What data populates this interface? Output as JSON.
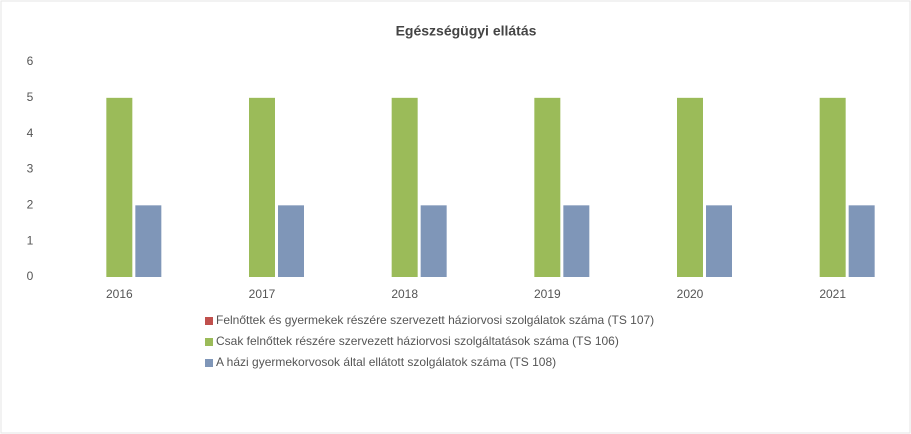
{
  "chart_data": {
    "type": "bar",
    "title": "Egészségügyi ellátás",
    "categories": [
      "2016",
      "2017",
      "2018",
      "2019",
      "2020",
      "2021"
    ],
    "series": [
      {
        "name": "Felnőttek és gyermekek részére szervezett háziorvosi szolgálatok száma (TS 107)",
        "color": "#c0504d",
        "values": [
          0,
          0,
          0,
          0,
          0,
          0
        ]
      },
      {
        "name": "Csak felnőttek részére szervezett háziorvosi szolgáltatások száma (TS 106)",
        "color": "#9bbb59",
        "values": [
          5,
          5,
          5,
          5,
          5,
          5
        ]
      },
      {
        "name": "A házi gyermekorvosok által ellátott szolgálatok száma (TS 108)",
        "color": "#7f96b8",
        "values": [
          2,
          2,
          2,
          2,
          2,
          2
        ]
      }
    ],
    "ylim": [
      0,
      6
    ],
    "yticks": [
      0,
      1,
      2,
      3,
      4,
      5,
      6
    ],
    "grid": false,
    "legend": "bottom"
  }
}
